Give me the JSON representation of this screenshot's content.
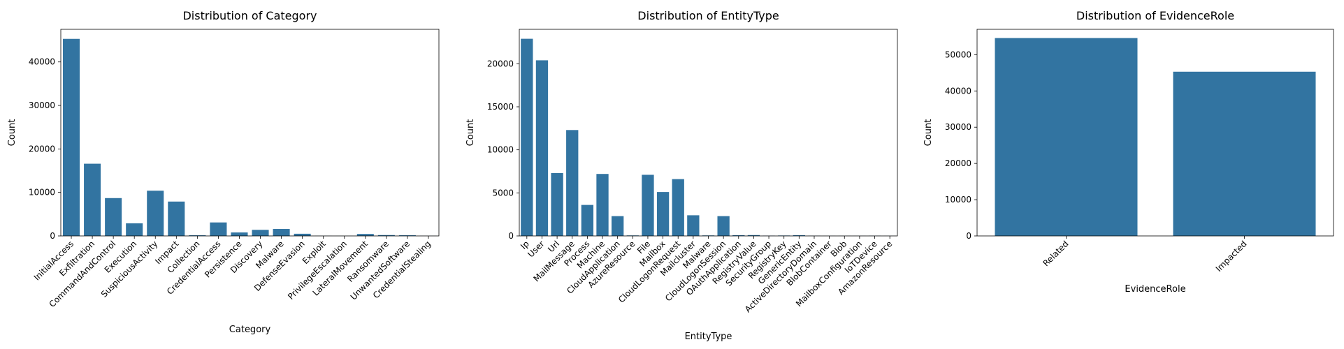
{
  "chart_data": [
    {
      "type": "bar",
      "title": "Distribution of Category",
      "xlabel": "Category",
      "ylabel": "Count",
      "ylim": [
        0,
        47500
      ],
      "yticks": [
        0,
        10000,
        20000,
        30000,
        40000
      ],
      "categories": [
        "InitialAccess",
        "Exfiltration",
        "CommandAndControl",
        "Execution",
        "SuspiciousActivity",
        "Impact",
        "Collection",
        "CredentialAccess",
        "Persistence",
        "Discovery",
        "Malware",
        "DefenseEvasion",
        "Exploit",
        "PrivilegeEscalation",
        "LateralMovement",
        "Ransomware",
        "UnwantedSoftware",
        "CredentialStealing"
      ],
      "values": [
        45300,
        16600,
        8700,
        2900,
        10400,
        7900,
        150,
        3100,
        800,
        1400,
        1600,
        500,
        20,
        10,
        450,
        200,
        150,
        20
      ],
      "bar_color": "#3274a1",
      "grid": false
    },
    {
      "type": "bar",
      "title": "Distribution of EntityType",
      "xlabel": "EntityType",
      "ylabel": "Count",
      "ylim": [
        0,
        24000
      ],
      "yticks": [
        0,
        5000,
        10000,
        15000,
        20000
      ],
      "categories": [
        "Ip",
        "User",
        "Url",
        "MailMessage",
        "Process",
        "Machine",
        "CloudApplication",
        "AzureResource",
        "File",
        "Mailbox",
        "CloudLogonRequest",
        "Mailcluster",
        "Malware",
        "CloudLogonSession",
        "OAuthApplication",
        "RegistryValue",
        "SecurityGroup",
        "RegistryKey",
        "GenericEntity",
        "ActiveDirectoryDomain",
        "BlobContainer",
        "Blob",
        "MailboxConfiguration",
        "IoTDevice",
        "AmazonResource"
      ],
      "values": [
        22900,
        20400,
        7300,
        12300,
        3600,
        7200,
        2300,
        60,
        7100,
        5100,
        6600,
        2400,
        60,
        2300,
        80,
        100,
        30,
        50,
        80,
        20,
        10,
        10,
        10,
        20,
        10
      ],
      "bar_color": "#3274a1",
      "grid": false
    },
    {
      "type": "bar",
      "title": "Distribution of EvidenceRole",
      "xlabel": "EvidenceRole",
      "ylabel": "Count",
      "ylim": [
        0,
        57000
      ],
      "yticks": [
        0,
        10000,
        20000,
        30000,
        40000,
        50000
      ],
      "categories": [
        "Related",
        "Impacted"
      ],
      "values": [
        54600,
        45300
      ],
      "bar_color": "#3274a1",
      "grid": false
    }
  ]
}
